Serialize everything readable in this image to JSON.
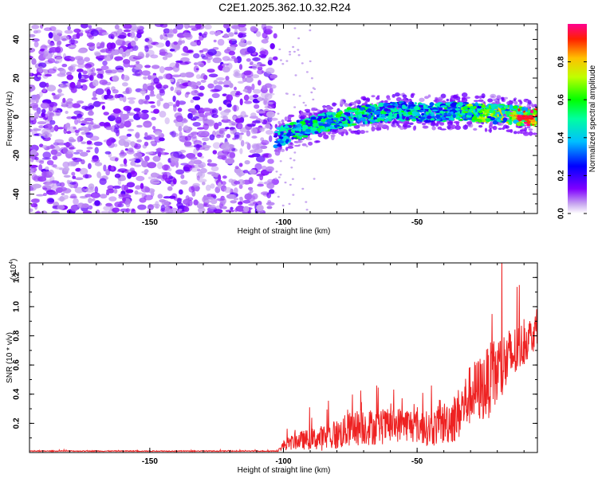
{
  "title": "C2E1.2025.362.10.32.R24",
  "chart_data": [
    {
      "type": "heatmap",
      "name": "spectrogram",
      "xlabel": "Height of straight line (km)",
      "ylabel": "Frequency (Hz)",
      "xlim": [
        -195,
        -5
      ],
      "ylim": [
        -50,
        48
      ],
      "xticks": [
        -150,
        -100,
        -50
      ],
      "yticks": [
        -40,
        -20,
        0,
        20,
        40
      ],
      "noise_region_x": [
        -195,
        -103
      ],
      "ridge": {
        "x": [
          -103,
          -95,
          -85,
          -75,
          -65,
          -55,
          -45,
          -35,
          -25,
          -15,
          -8,
          -5
        ],
        "freq": [
          -11,
          -7,
          -3,
          0,
          2,
          3,
          2,
          3,
          2,
          1,
          0,
          0
        ],
        "amplitude": [
          0.45,
          0.55,
          0.55,
          0.6,
          0.55,
          0.55,
          0.5,
          0.6,
          0.7,
          0.8,
          0.95,
          0.9
        ]
      },
      "colorbar": {
        "label": "Normalized spectral amplitude",
        "range": [
          0.0,
          1.0
        ],
        "ticks": [
          "0.0",
          "0.2",
          "0.4",
          "0.6",
          "0.8"
        ]
      }
    },
    {
      "type": "line",
      "name": "snr",
      "xlabel": "Height of straight line (km)",
      "ylabel": "SNR (10 * v/v)",
      "multiplier_label": "(x10",
      "multiplier_exp": "4",
      "xlim": [
        -195,
        -5
      ],
      "ylim": [
        0,
        1.3
      ],
      "xticks": [
        -150,
        -100,
        -50
      ],
      "yticks": [
        "0.2",
        "0.4",
        "0.6",
        "0.8",
        "1.0",
        "1.2"
      ],
      "color": "#ee2222",
      "series": [
        {
          "name": "SNR",
          "x": [
            -195,
            -102,
            -100,
            -95,
            -90,
            -85,
            -80,
            -75,
            -70,
            -65,
            -60,
            -55,
            -50,
            -45,
            -40,
            -35,
            -30,
            -25,
            -20,
            -15,
            -10,
            -5
          ],
          "baseline": [
            0.01,
            0.01,
            0.05,
            0.08,
            0.09,
            0.1,
            0.12,
            0.16,
            0.18,
            0.17,
            0.18,
            0.2,
            0.18,
            0.16,
            0.2,
            0.25,
            0.4,
            0.45,
            0.55,
            0.65,
            0.75,
            0.85
          ],
          "spread": [
            0.005,
            0.005,
            0.06,
            0.1,
            0.12,
            0.15,
            0.18,
            0.2,
            0.22,
            0.2,
            0.2,
            0.2,
            0.2,
            0.2,
            0.25,
            0.3,
            0.35,
            0.4,
            0.45,
            0.35,
            0.25,
            0.2
          ]
        }
      ]
    }
  ]
}
